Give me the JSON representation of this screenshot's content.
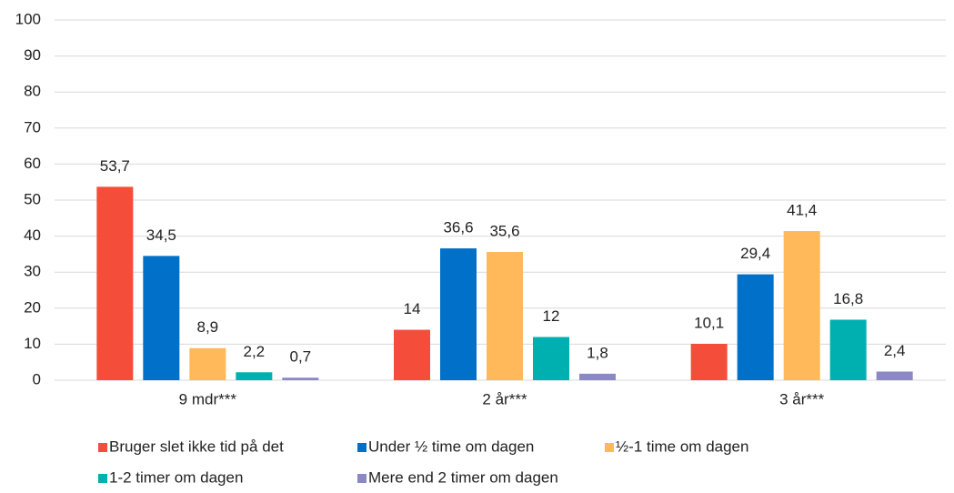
{
  "chart_data": {
    "type": "bar",
    "categories": [
      "9 mdr***",
      "2 år***",
      "3 år***"
    ],
    "series": [
      {
        "name": "Bruger slet ikke tid på det",
        "color": "#f44e3b",
        "values": [
          53.7,
          14,
          10.1
        ],
        "value_labels": [
          "53,7",
          "14",
          "10,1"
        ]
      },
      {
        "name": "Under ½ time om dagen",
        "color": "#0070c8",
        "values": [
          34.5,
          36.6,
          29.4
        ],
        "value_labels": [
          "34,5",
          "36,6",
          "29,4"
        ]
      },
      {
        "name": "½-1 time om dagen",
        "color": "#ffb95a",
        "values": [
          8.9,
          35.6,
          41.4
        ],
        "value_labels": [
          "8,9",
          "35,6",
          "41,4"
        ]
      },
      {
        "name": "1-2 timer om dagen",
        "color": "#00b0b0",
        "values": [
          2.2,
          12,
          16.8
        ],
        "value_labels": [
          "2,2",
          "12",
          "16,8"
        ]
      },
      {
        "name": "Mere end 2 timer om dagen",
        "color": "#8b88c4",
        "values": [
          0.7,
          1.8,
          2.4
        ],
        "value_labels": [
          "0,7",
          "1,8",
          "2,4"
        ]
      }
    ],
    "ylim": [
      0,
      100
    ],
    "yticks": [
      0,
      10,
      20,
      30,
      40,
      50,
      60,
      70,
      80,
      90,
      100
    ],
    "grid": true
  }
}
